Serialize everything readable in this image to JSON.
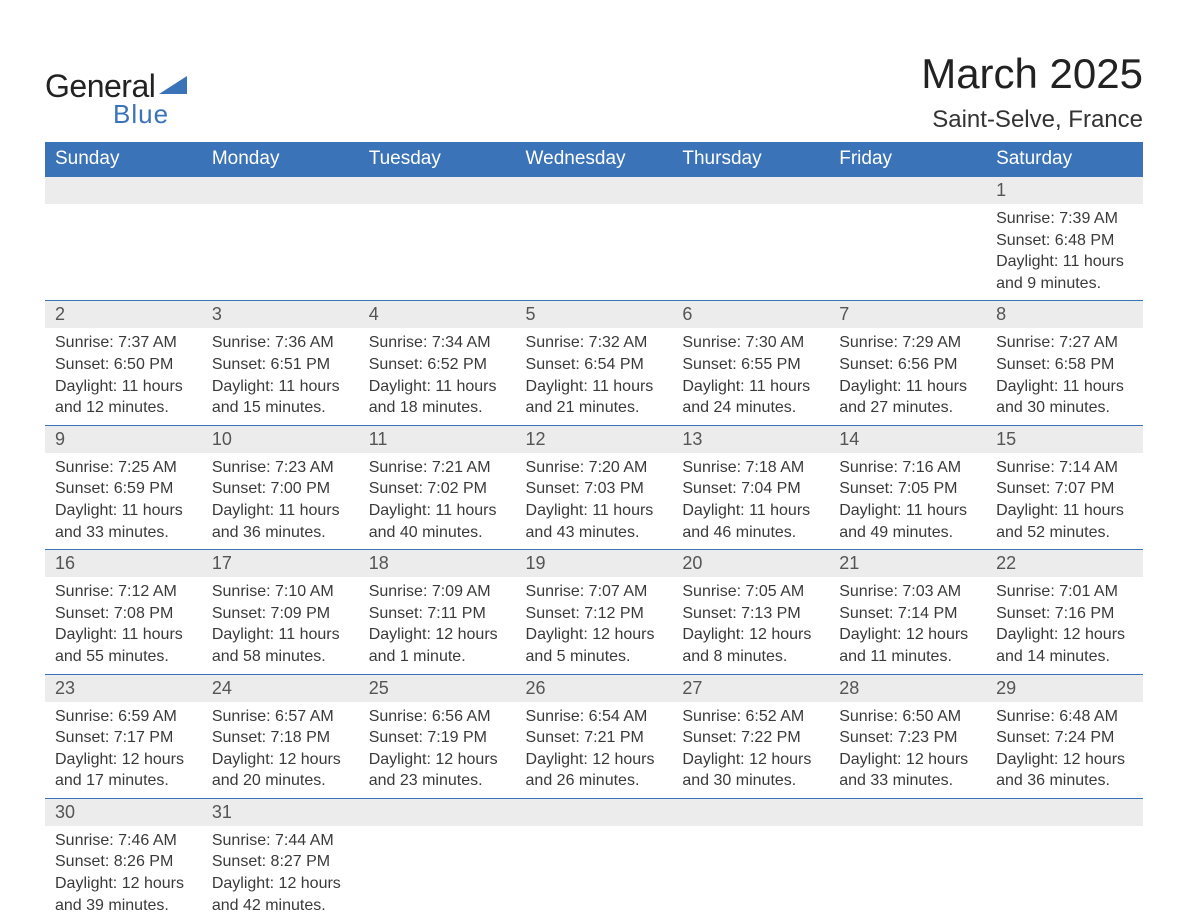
{
  "brand": {
    "name1": "General",
    "name2": "Blue",
    "accent": "#3b73b9"
  },
  "title": "March 2025",
  "location": "Saint-Selve, France",
  "colors": {
    "header_bg": "#3b73b9",
    "header_text": "#ffffff",
    "daynum_bg": "#ececec",
    "body_text": "#3a3a3a",
    "rule": "#3b73b9",
    "page_bg": "#ffffff"
  },
  "fonts": {
    "title_pt": 42,
    "location_pt": 24,
    "header_pt": 19,
    "daynum_pt": 18,
    "body_pt": 16
  },
  "weekdays": [
    "Sunday",
    "Monday",
    "Tuesday",
    "Wednesday",
    "Thursday",
    "Friday",
    "Saturday"
  ],
  "weeks": [
    [
      null,
      null,
      null,
      null,
      null,
      null,
      {
        "n": "1",
        "sunrise": "7:39 AM",
        "sunset": "6:48 PM",
        "daylight": "11 hours and 9 minutes."
      }
    ],
    [
      {
        "n": "2",
        "sunrise": "7:37 AM",
        "sunset": "6:50 PM",
        "daylight": "11 hours and 12 minutes."
      },
      {
        "n": "3",
        "sunrise": "7:36 AM",
        "sunset": "6:51 PM",
        "daylight": "11 hours and 15 minutes."
      },
      {
        "n": "4",
        "sunrise": "7:34 AM",
        "sunset": "6:52 PM",
        "daylight": "11 hours and 18 minutes."
      },
      {
        "n": "5",
        "sunrise": "7:32 AM",
        "sunset": "6:54 PM",
        "daylight": "11 hours and 21 minutes."
      },
      {
        "n": "6",
        "sunrise": "7:30 AM",
        "sunset": "6:55 PM",
        "daylight": "11 hours and 24 minutes."
      },
      {
        "n": "7",
        "sunrise": "7:29 AM",
        "sunset": "6:56 PM",
        "daylight": "11 hours and 27 minutes."
      },
      {
        "n": "8",
        "sunrise": "7:27 AM",
        "sunset": "6:58 PM",
        "daylight": "11 hours and 30 minutes."
      }
    ],
    [
      {
        "n": "9",
        "sunrise": "7:25 AM",
        "sunset": "6:59 PM",
        "daylight": "11 hours and 33 minutes."
      },
      {
        "n": "10",
        "sunrise": "7:23 AM",
        "sunset": "7:00 PM",
        "daylight": "11 hours and 36 minutes."
      },
      {
        "n": "11",
        "sunrise": "7:21 AM",
        "sunset": "7:02 PM",
        "daylight": "11 hours and 40 minutes."
      },
      {
        "n": "12",
        "sunrise": "7:20 AM",
        "sunset": "7:03 PM",
        "daylight": "11 hours and 43 minutes."
      },
      {
        "n": "13",
        "sunrise": "7:18 AM",
        "sunset": "7:04 PM",
        "daylight": "11 hours and 46 minutes."
      },
      {
        "n": "14",
        "sunrise": "7:16 AM",
        "sunset": "7:05 PM",
        "daylight": "11 hours and 49 minutes."
      },
      {
        "n": "15",
        "sunrise": "7:14 AM",
        "sunset": "7:07 PM",
        "daylight": "11 hours and 52 minutes."
      }
    ],
    [
      {
        "n": "16",
        "sunrise": "7:12 AM",
        "sunset": "7:08 PM",
        "daylight": "11 hours and 55 minutes."
      },
      {
        "n": "17",
        "sunrise": "7:10 AM",
        "sunset": "7:09 PM",
        "daylight": "11 hours and 58 minutes."
      },
      {
        "n": "18",
        "sunrise": "7:09 AM",
        "sunset": "7:11 PM",
        "daylight": "12 hours and 1 minute."
      },
      {
        "n": "19",
        "sunrise": "7:07 AM",
        "sunset": "7:12 PM",
        "daylight": "12 hours and 5 minutes."
      },
      {
        "n": "20",
        "sunrise": "7:05 AM",
        "sunset": "7:13 PM",
        "daylight": "12 hours and 8 minutes."
      },
      {
        "n": "21",
        "sunrise": "7:03 AM",
        "sunset": "7:14 PM",
        "daylight": "12 hours and 11 minutes."
      },
      {
        "n": "22",
        "sunrise": "7:01 AM",
        "sunset": "7:16 PM",
        "daylight": "12 hours and 14 minutes."
      }
    ],
    [
      {
        "n": "23",
        "sunrise": "6:59 AM",
        "sunset": "7:17 PM",
        "daylight": "12 hours and 17 minutes."
      },
      {
        "n": "24",
        "sunrise": "6:57 AM",
        "sunset": "7:18 PM",
        "daylight": "12 hours and 20 minutes."
      },
      {
        "n": "25",
        "sunrise": "6:56 AM",
        "sunset": "7:19 PM",
        "daylight": "12 hours and 23 minutes."
      },
      {
        "n": "26",
        "sunrise": "6:54 AM",
        "sunset": "7:21 PM",
        "daylight": "12 hours and 26 minutes."
      },
      {
        "n": "27",
        "sunrise": "6:52 AM",
        "sunset": "7:22 PM",
        "daylight": "12 hours and 30 minutes."
      },
      {
        "n": "28",
        "sunrise": "6:50 AM",
        "sunset": "7:23 PM",
        "daylight": "12 hours and 33 minutes."
      },
      {
        "n": "29",
        "sunrise": "6:48 AM",
        "sunset": "7:24 PM",
        "daylight": "12 hours and 36 minutes."
      }
    ],
    [
      {
        "n": "30",
        "sunrise": "7:46 AM",
        "sunset": "8:26 PM",
        "daylight": "12 hours and 39 minutes."
      },
      {
        "n": "31",
        "sunrise": "7:44 AM",
        "sunset": "8:27 PM",
        "daylight": "12 hours and 42 minutes."
      },
      null,
      null,
      null,
      null,
      null
    ]
  ],
  "labels": {
    "sunrise": "Sunrise: ",
    "sunset": "Sunset: ",
    "daylight": "Daylight: "
  }
}
